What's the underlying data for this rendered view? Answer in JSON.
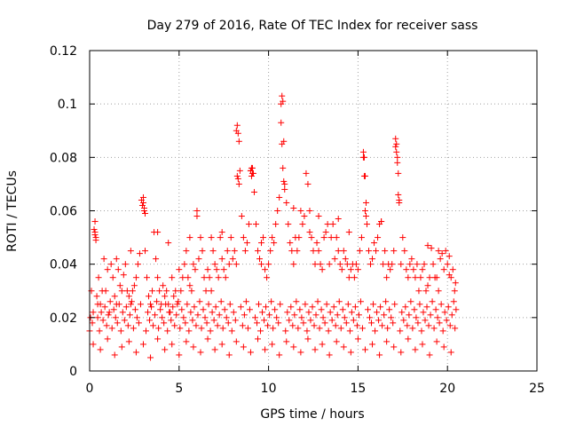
{
  "chart_data": {
    "type": "scatter",
    "title": "Day 279 of 2016, Rate Of TEC Index for receiver sass",
    "xlabel": "GPS time / hours",
    "ylabel": "ROTI / TECUs",
    "xlim": [
      0,
      25
    ],
    "ylim": [
      0,
      0.12
    ],
    "xticks": [
      0,
      5,
      10,
      15,
      20,
      25
    ],
    "yticks": [
      0,
      0.02,
      0.04,
      0.06,
      0.08,
      0.1,
      0.12
    ],
    "xtick_labels": [
      "0",
      "5",
      "10",
      "15",
      "20",
      "25"
    ],
    "ytick_labels": [
      "0",
      "0.02",
      "0.04",
      "0.06",
      "0.08",
      "0.1",
      "0.12"
    ],
    "grid": true,
    "marker": "+",
    "color": "#ff0000",
    "series": [
      {
        "name": "ROTI",
        "x": [
          0.0,
          0.1,
          0.2,
          0.3,
          0.3,
          0.35,
          0.4,
          0.45,
          0.5,
          0.6,
          0.7,
          0.8,
          0.9,
          1.0,
          1.1,
          1.2,
          1.3,
          1.4,
          1.5,
          1.6,
          1.7,
          1.8,
          1.9,
          2.0,
          2.1,
          2.2,
          2.3,
          2.4,
          2.5,
          2.6,
          2.7,
          2.8,
          2.9,
          2.95,
          3.0,
          3.05,
          3.1,
          3.2,
          3.3,
          3.4,
          3.5,
          3.6,
          3.7,
          3.8,
          3.9,
          4.0,
          4.1,
          4.2,
          4.3,
          4.4,
          4.5,
          4.6,
          4.7,
          4.8,
          4.9,
          5.0,
          5.1,
          5.2,
          5.3,
          5.4,
          5.5,
          5.6,
          5.7,
          5.8,
          5.9,
          6.0,
          6.1,
          6.2,
          6.3,
          6.4,
          6.5,
          6.6,
          6.7,
          6.8,
          6.9,
          7.0,
          7.1,
          7.2,
          7.3,
          7.4,
          7.5,
          7.6,
          7.7,
          7.8,
          7.9,
          8.0,
          8.1,
          8.2,
          8.25,
          8.3,
          8.35,
          8.4,
          8.5,
          8.6,
          8.7,
          8.8,
          8.9,
          9.0,
          9.05,
          9.1,
          9.2,
          9.3,
          9.4,
          9.5,
          9.6,
          9.7,
          9.8,
          9.9,
          10.0,
          10.1,
          10.2,
          10.3,
          10.4,
          10.5,
          10.6,
          10.7,
          10.75,
          10.8,
          10.85,
          10.9,
          11.0,
          11.1,
          11.2,
          11.3,
          11.4,
          11.5,
          11.6,
          11.7,
          11.8,
          11.9,
          12.0,
          12.1,
          12.2,
          12.3,
          12.4,
          12.5,
          12.6,
          12.7,
          12.8,
          12.9,
          13.0,
          13.1,
          13.2,
          13.3,
          13.4,
          13.5,
          13.6,
          13.7,
          13.8,
          13.9,
          14.0,
          14.1,
          14.2,
          14.3,
          14.4,
          14.5,
          14.6,
          14.7,
          14.8,
          14.9,
          15.0,
          15.1,
          15.2,
          15.3,
          15.35,
          15.4,
          15.45,
          15.5,
          15.6,
          15.7,
          15.8,
          15.9,
          16.0,
          16.1,
          16.2,
          16.3,
          16.4,
          16.5,
          16.6,
          16.7,
          16.8,
          16.9,
          17.0,
          17.1,
          17.15,
          17.2,
          17.25,
          17.3,
          17.4,
          17.5,
          17.6,
          17.7,
          17.8,
          17.9,
          18.0,
          18.1,
          18.2,
          18.3,
          18.4,
          18.5,
          18.6,
          18.7,
          18.8,
          18.9,
          19.0,
          19.1,
          19.2,
          19.3,
          19.4,
          19.5,
          19.6,
          19.7,
          19.8,
          19.9,
          20.0,
          20.1,
          20.2,
          20.3,
          20.4,
          20.45,
          0.2,
          0.6,
          1.0,
          1.4,
          1.8,
          2.2,
          2.6,
          3.0,
          3.4,
          3.8,
          4.2,
          4.6,
          5.0,
          5.4,
          5.8,
          6.2,
          6.6,
          7.0,
          7.4,
          7.8,
          8.2,
          8.6,
          9.0,
          9.4,
          9.8,
          10.2,
          10.6,
          11.0,
          11.4,
          11.8,
          12.2,
          12.6,
          13.0,
          13.4,
          13.8,
          14.2,
          14.6,
          15.0,
          15.4,
          15.8,
          16.2,
          16.6,
          17.0,
          17.4,
          17.8,
          18.2,
          18.6,
          19.0,
          19.4,
          19.8,
          20.2,
          0.25,
          0.3,
          0.35,
          3.0,
          3.05,
          3.1,
          8.2,
          8.25,
          8.3,
          8.35,
          9.0,
          9.05,
          9.1,
          9.15,
          10.7,
          10.75,
          10.8,
          10.85,
          10.9,
          15.3,
          15.35,
          15.4,
          15.45,
          17.1,
          17.15,
          17.2,
          17.25,
          17.3,
          6.0,
          11.4,
          12.3,
          13.9,
          3.8,
          7.4,
          5.6,
          14.5,
          16.3,
          18.9,
          19.5,
          20.1,
          4.4,
          1.5,
          2.3,
          6.8,
          9.6,
          12.8,
          0.05,
          0.15,
          0.45,
          0.55,
          0.65,
          0.75,
          0.85,
          0.95,
          1.05,
          1.15,
          1.25,
          1.35,
          1.45,
          1.55,
          1.65,
          1.75,
          1.85,
          1.95,
          2.05,
          2.15,
          2.25,
          2.35,
          2.45,
          2.55,
          2.65,
          2.75,
          2.85,
          3.15,
          3.25,
          3.35,
          3.45,
          3.55,
          3.65,
          3.75,
          3.85,
          3.95,
          4.05,
          4.15,
          4.25,
          4.35,
          4.45,
          4.55,
          4.65,
          4.75,
          4.85,
          4.95,
          5.05,
          5.15,
          5.25,
          5.35,
          5.45,
          5.55,
          5.65,
          5.75,
          5.85,
          5.95,
          6.05,
          6.15,
          6.25,
          6.35,
          6.45,
          6.55,
          6.65,
          6.75,
          6.85,
          6.95,
          7.05,
          7.15,
          7.25,
          7.35,
          7.45,
          7.55,
          7.65,
          7.75,
          7.85,
          7.95,
          8.05,
          8.15,
          8.45,
          8.55,
          8.65,
          8.75,
          8.85,
          8.95,
          9.25,
          9.35,
          9.45,
          9.55,
          9.65,
          9.75,
          9.85,
          9.95,
          10.05,
          10.15,
          10.25,
          10.35,
          10.45,
          10.55,
          10.65,
          10.95,
          11.05,
          11.15,
          11.25,
          11.35,
          11.45,
          11.55,
          11.65,
          11.75,
          11.85,
          11.95,
          12.05,
          12.15,
          12.25,
          12.35,
          12.45,
          12.55,
          12.65,
          12.75,
          12.85,
          12.95,
          13.05,
          13.15,
          13.25,
          13.35,
          13.45,
          13.55,
          13.65,
          13.75,
          13.85,
          13.95,
          14.05,
          14.15,
          14.25,
          14.35,
          14.45,
          14.55,
          14.65,
          14.75,
          14.85,
          14.95,
          15.05,
          15.15,
          15.25,
          15.55,
          15.65,
          15.75,
          15.85,
          15.95,
          16.05,
          16.15,
          16.25,
          16.35,
          16.45,
          16.55,
          16.65,
          16.75,
          16.85,
          16.95,
          17.05,
          17.35,
          17.45,
          17.55,
          17.65,
          17.75,
          17.85,
          17.95,
          18.05,
          18.15,
          18.25,
          18.35,
          18.45,
          18.55,
          18.65,
          18.75,
          18.85,
          18.95,
          19.05,
          19.15,
          19.25,
          19.35,
          19.45,
          19.55,
          19.65,
          19.75,
          19.85,
          19.95,
          20.05,
          20.15,
          20.25,
          20.35,
          20.42,
          20.48
        ],
        "y": [
          0.015,
          0.03,
          0.022,
          0.056,
          0.052,
          0.05,
          0.028,
          0.02,
          0.035,
          0.025,
          0.03,
          0.042,
          0.03,
          0.038,
          0.022,
          0.04,
          0.035,
          0.028,
          0.025,
          0.038,
          0.032,
          0.03,
          0.036,
          0.04,
          0.03,
          0.028,
          0.025,
          0.03,
          0.032,
          0.035,
          0.04,
          0.044,
          0.064,
          0.062,
          0.065,
          0.06,
          0.045,
          0.035,
          0.028,
          0.025,
          0.03,
          0.052,
          0.042,
          0.035,
          0.03,
          0.025,
          0.032,
          0.028,
          0.03,
          0.025,
          0.022,
          0.035,
          0.028,
          0.03,
          0.025,
          0.038,
          0.03,
          0.035,
          0.04,
          0.045,
          0.035,
          0.032,
          0.03,
          0.04,
          0.038,
          0.06,
          0.042,
          0.05,
          0.045,
          0.035,
          0.03,
          0.038,
          0.035,
          0.03,
          0.045,
          0.04,
          0.038,
          0.035,
          0.05,
          0.042,
          0.038,
          0.035,
          0.045,
          0.04,
          0.05,
          0.042,
          0.045,
          0.04,
          0.092,
          0.089,
          0.086,
          0.075,
          0.058,
          0.05,
          0.045,
          0.048,
          0.055,
          0.075,
          0.076,
          0.074,
          0.067,
          0.055,
          0.045,
          0.042,
          0.04,
          0.05,
          0.038,
          0.035,
          0.04,
          0.045,
          0.05,
          0.048,
          0.055,
          0.06,
          0.065,
          0.093,
          0.103,
          0.101,
          0.086,
          0.07,
          0.063,
          0.055,
          0.048,
          0.045,
          0.04,
          0.05,
          0.045,
          0.05,
          0.06,
          0.055,
          0.058,
          0.074,
          0.07,
          0.052,
          0.05,
          0.045,
          0.04,
          0.048,
          0.045,
          0.04,
          0.038,
          0.05,
          0.052,
          0.055,
          0.04,
          0.05,
          0.055,
          0.042,
          0.05,
          0.045,
          0.04,
          0.038,
          0.045,
          0.042,
          0.04,
          0.035,
          0.038,
          0.04,
          0.035,
          0.04,
          0.038,
          0.045,
          0.05,
          0.082,
          0.08,
          0.073,
          0.063,
          0.055,
          0.045,
          0.04,
          0.042,
          0.048,
          0.045,
          0.05,
          0.055,
          0.056,
          0.04,
          0.045,
          0.035,
          0.04,
          0.038,
          0.04,
          0.045,
          0.087,
          0.085,
          0.08,
          0.066,
          0.063,
          0.04,
          0.05,
          0.045,
          0.038,
          0.035,
          0.04,
          0.042,
          0.038,
          0.035,
          0.04,
          0.03,
          0.035,
          0.038,
          0.04,
          0.03,
          0.032,
          0.035,
          0.046,
          0.04,
          0.035,
          0.035,
          0.03,
          0.042,
          0.044,
          0.038,
          0.045,
          0.04,
          0.036,
          0.035,
          0.038,
          0.03,
          0.033,
          0.01,
          0.008,
          0.012,
          0.006,
          0.009,
          0.011,
          0.007,
          0.01,
          0.005,
          0.012,
          0.008,
          0.01,
          0.006,
          0.011,
          0.009,
          0.007,
          0.012,
          0.008,
          0.01,
          0.006,
          0.011,
          0.009,
          0.007,
          0.012,
          0.008,
          0.01,
          0.006,
          0.011,
          0.009,
          0.007,
          0.012,
          0.008,
          0.01,
          0.006,
          0.011,
          0.009,
          0.007,
          0.012,
          0.008,
          0.01,
          0.006,
          0.011,
          0.009,
          0.007,
          0.012,
          0.008,
          0.01,
          0.006,
          0.011,
          0.009,
          0.007,
          0.053,
          0.051,
          0.049,
          0.063,
          0.061,
          0.059,
          0.09,
          0.073,
          0.072,
          0.07,
          0.075,
          0.073,
          0.076,
          0.074,
          0.1,
          0.085,
          0.076,
          0.071,
          0.068,
          0.08,
          0.073,
          0.06,
          0.058,
          0.084,
          0.082,
          0.078,
          0.074,
          0.064,
          0.058,
          0.061,
          0.06,
          0.057,
          0.052,
          0.052,
          0.05,
          0.052,
          0.056,
          0.047,
          0.045,
          0.043,
          0.048,
          0.042,
          0.045,
          0.05,
          0.048,
          0.058,
          0.02,
          0.018,
          0.025,
          0.015,
          0.022,
          0.019,
          0.024,
          0.017,
          0.021,
          0.026,
          0.016,
          0.023,
          0.02,
          0.018,
          0.025,
          0.015,
          0.022,
          0.019,
          0.024,
          0.017,
          0.021,
          0.026,
          0.016,
          0.023,
          0.02,
          0.018,
          0.025,
          0.015,
          0.022,
          0.019,
          0.024,
          0.017,
          0.021,
          0.026,
          0.016,
          0.023,
          0.02,
          0.018,
          0.025,
          0.015,
          0.022,
          0.019,
          0.024,
          0.017,
          0.021,
          0.026,
          0.016,
          0.023,
          0.02,
          0.018,
          0.025,
          0.015,
          0.022,
          0.019,
          0.024,
          0.017,
          0.021,
          0.026,
          0.016,
          0.023,
          0.02,
          0.018,
          0.025,
          0.015,
          0.022,
          0.019,
          0.024,
          0.017,
          0.021,
          0.026,
          0.016,
          0.023,
          0.02,
          0.018,
          0.025,
          0.015,
          0.022,
          0.019,
          0.024,
          0.017,
          0.021,
          0.026,
          0.016,
          0.023,
          0.02,
          0.018,
          0.025,
          0.015,
          0.022,
          0.019,
          0.024,
          0.017,
          0.021,
          0.026,
          0.016,
          0.023,
          0.02,
          0.018,
          0.025,
          0.015,
          0.022,
          0.019,
          0.024,
          0.017,
          0.021,
          0.026,
          0.016,
          0.023,
          0.02,
          0.018,
          0.025,
          0.015,
          0.022,
          0.019,
          0.024,
          0.017,
          0.021,
          0.026,
          0.016,
          0.023,
          0.02,
          0.018,
          0.025,
          0.015,
          0.022,
          0.019,
          0.024,
          0.017,
          0.021,
          0.026,
          0.016,
          0.023,
          0.02,
          0.018,
          0.025,
          0.015,
          0.022,
          0.019,
          0.024,
          0.017,
          0.021,
          0.026,
          0.016,
          0.023,
          0.02,
          0.018,
          0.025,
          0.015,
          0.022,
          0.019,
          0.024,
          0.017,
          0.021,
          0.026,
          0.016,
          0.023,
          0.02,
          0.018,
          0.025,
          0.015,
          0.022,
          0.019,
          0.024,
          0.017,
          0.021,
          0.026,
          0.016,
          0.023,
          0.02,
          0.018,
          0.025,
          0.015,
          0.022,
          0.019,
          0.024,
          0.017,
          0.021,
          0.026,
          0.016,
          0.023,
          0.02,
          0.018,
          0.025,
          0.015,
          0.022,
          0.019,
          0.024,
          0.017,
          0.021,
          0.026,
          0.016,
          0.023
        ]
      }
    ]
  }
}
